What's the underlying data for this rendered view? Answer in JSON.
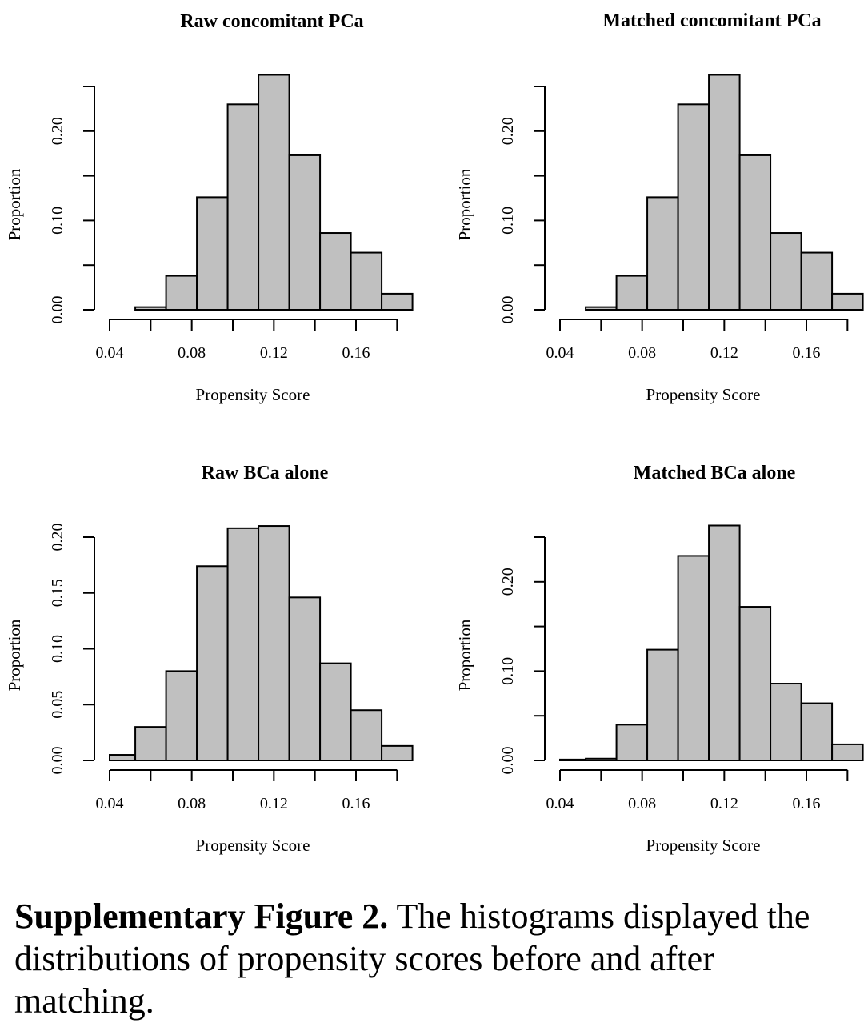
{
  "chart_data": [
    {
      "type": "bar",
      "title": "Raw concomitant PCa",
      "xlabel": "Propensity Score",
      "ylabel": "Proportion",
      "bin_edges": [
        0.04,
        0.0525,
        0.0675,
        0.0825,
        0.0975,
        0.1125,
        0.1275,
        0.1425,
        0.1575,
        0.1725,
        0.1875
      ],
      "values": [
        0.0,
        0.003,
        0.038,
        0.126,
        0.23,
        0.263,
        0.173,
        0.086,
        0.064,
        0.018
      ],
      "xticks": [
        "0.04",
        "0.08",
        "0.12",
        "0.16"
      ],
      "yticks": [
        "0.00",
        "0.10",
        "0.20"
      ],
      "xlim": [
        0.04,
        0.18
      ],
      "ylim": [
        0,
        0.25
      ]
    },
    {
      "type": "bar",
      "title": "Matched concomitant PCa",
      "xlabel": "Propensity Score",
      "ylabel": "Proportion",
      "bin_edges": [
        0.04,
        0.0525,
        0.0675,
        0.0825,
        0.0975,
        0.1125,
        0.1275,
        0.1425,
        0.1575,
        0.1725,
        0.1875
      ],
      "values": [
        0.0,
        0.003,
        0.038,
        0.126,
        0.23,
        0.263,
        0.173,
        0.086,
        0.064,
        0.018
      ],
      "xticks": [
        "0.04",
        "0.08",
        "0.12",
        "0.16"
      ],
      "yticks": [
        "0.00",
        "0.10",
        "0.20"
      ],
      "xlim": [
        0.04,
        0.18
      ],
      "ylim": [
        0,
        0.25
      ]
    },
    {
      "type": "bar",
      "title": "Raw BCa alone",
      "xlabel": "Propensity Score",
      "ylabel": "Proportion",
      "bin_edges": [
        0.04,
        0.0525,
        0.0675,
        0.0825,
        0.0975,
        0.1125,
        0.1275,
        0.1425,
        0.1575,
        0.1725,
        0.1875
      ],
      "values": [
        0.005,
        0.03,
        0.08,
        0.174,
        0.208,
        0.21,
        0.146,
        0.087,
        0.045,
        0.013
      ],
      "xticks": [
        "0.04",
        "0.08",
        "0.12",
        "0.16"
      ],
      "yticks": [
        "0.00",
        "0.05",
        "0.10",
        "0.15",
        "0.20"
      ],
      "xlim": [
        0.04,
        0.18
      ],
      "ylim": [
        0,
        0.2
      ]
    },
    {
      "type": "bar",
      "title": "Matched BCa alone",
      "xlabel": "Propensity Score",
      "ylabel": "Proportion",
      "bin_edges": [
        0.04,
        0.0525,
        0.0675,
        0.0825,
        0.0975,
        0.1125,
        0.1275,
        0.1425,
        0.1575,
        0.1725,
        0.1875
      ],
      "values": [
        0.001,
        0.002,
        0.04,
        0.124,
        0.229,
        0.263,
        0.172,
        0.086,
        0.064,
        0.018
      ],
      "xticks": [
        "0.04",
        "0.08",
        "0.12",
        "0.16"
      ],
      "yticks": [
        "0.00",
        "0.10",
        "0.20"
      ],
      "xlim": [
        0.04,
        0.18
      ],
      "ylim": [
        0,
        0.25
      ]
    }
  ],
  "colors": {
    "bar_fill": "#c0c0c0",
    "bar_stroke": "#000000"
  },
  "caption": {
    "label": "Supplementary Figure 2.",
    "text": " The histograms displayed the distributions of propensity scores before and after matching."
  }
}
